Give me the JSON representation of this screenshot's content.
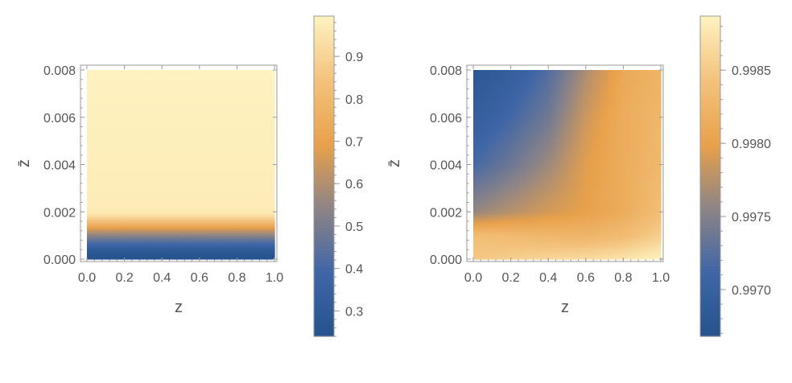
{
  "chart_data": [
    {
      "type": "heatmap",
      "title": "",
      "xlabel": "z",
      "ylabel": "z̄",
      "xlim": [
        0.0,
        1.0
      ],
      "ylim": [
        0.0,
        0.008
      ],
      "x_ticks": [
        "0.0",
        "0.2",
        "0.4",
        "0.6",
        "0.8",
        "1.0"
      ],
      "y_ticks": [
        "0.000",
        "0.002",
        "0.004",
        "0.006",
        "0.008"
      ],
      "colorbar": {
        "range": [
          0.24,
          0.995
        ],
        "ticks": [
          {
            "value": 0.3,
            "label": "0.3"
          },
          {
            "value": 0.4,
            "label": "0.4"
          },
          {
            "value": 0.5,
            "label": "0.5"
          },
          {
            "value": 0.6,
            "label": "0.6"
          },
          {
            "value": 0.7,
            "label": "0.7"
          },
          {
            "value": 0.8,
            "label": "0.8"
          },
          {
            "value": 0.9,
            "label": "0.9"
          }
        ]
      },
      "colormap": [
        "#24528c",
        "#3f66a7",
        "#8d8486",
        "#e8a14b",
        "#f3c27c",
        "#fef2c0"
      ],
      "field": {
        "y_profile": [
          [
            0.0,
            0.24
          ],
          [
            0.0004,
            0.3
          ],
          [
            0.0008,
            0.45
          ],
          [
            0.0012,
            0.62
          ],
          [
            0.0016,
            0.83
          ],
          [
            0.0019,
            0.95
          ],
          [
            0.0021,
            0.975
          ],
          [
            0.008,
            0.995
          ]
        ]
      }
    },
    {
      "type": "heatmap",
      "title": "",
      "xlabel": "z",
      "ylabel": "z̄",
      "xlim": [
        0.0,
        1.0
      ],
      "ylim": [
        0.0,
        0.008
      ],
      "x_ticks": [
        "0.0",
        "0.2",
        "0.4",
        "0.6",
        "0.8",
        "1.0"
      ],
      "y_ticks": [
        "0.000",
        "0.002",
        "0.004",
        "0.006",
        "0.008"
      ],
      "colorbar": {
        "range": [
          0.99668,
          0.99887
        ],
        "ticks": [
          {
            "value": 0.997,
            "label": "0.9970"
          },
          {
            "value": 0.9975,
            "label": "0.9975"
          },
          {
            "value": 0.998,
            "label": "0.9980"
          },
          {
            "value": 0.9985,
            "label": "0.9985"
          }
        ]
      },
      "colormap": [
        "#24528c",
        "#3f66a7",
        "#8d8486",
        "#e8a14b",
        "#f3c27c",
        "#fef2c0"
      ],
      "field": {
        "grid_x": [
          0.0,
          0.2,
          0.4,
          0.6,
          0.8,
          1.0
        ],
        "grid_y": [
          0.0,
          0.001,
          0.002,
          0.004,
          0.006,
          0.008
        ],
        "values": [
          [
            0.99848,
            0.99855,
            0.99862,
            0.99868,
            0.99875,
            0.99887
          ],
          [
            0.99838,
            0.99834,
            0.99828,
            0.99826,
            0.99835,
            0.99855
          ],
          [
            0.9976,
            0.99776,
            0.9979,
            0.998,
            0.99815,
            0.99838
          ],
          [
            0.99716,
            0.99738,
            0.99764,
            0.99796,
            0.99815,
            0.9983
          ],
          [
            0.99694,
            0.99714,
            0.9974,
            0.99786,
            0.99815,
            0.99828
          ],
          [
            0.9968,
            0.99694,
            0.99722,
            0.9977,
            0.9981,
            0.99825
          ]
        ]
      }
    }
  ]
}
